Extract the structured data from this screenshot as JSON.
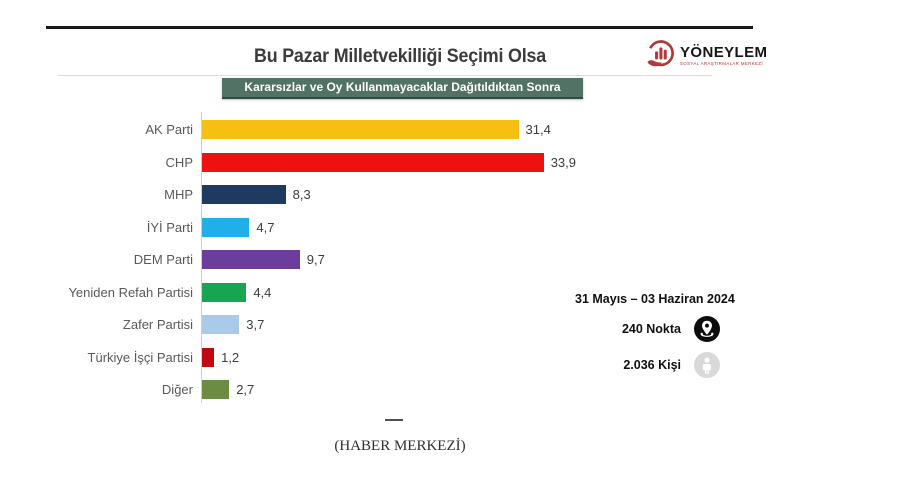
{
  "header": {
    "title": "Bu Pazar Milletvekilliği Seçimi Olsa",
    "subtitle_badge": "Kararsızlar ve Oy Kullanmayacaklar Dağıtıldıktan Sonra",
    "logo": {
      "name": "YÖNEYLEM",
      "subtitle": "SOSYAL ARAŞTIRMALAR MERKEZİ"
    }
  },
  "chart_data": {
    "type": "bar",
    "orientation": "horizontal",
    "title": "Bu Pazar Milletvekilliği Seçimi Olsa",
    "subtitle": "Kararsızlar ve Oy Kullanmayacaklar Dağıtıldıktan Sonra",
    "categories": [
      "AK Parti",
      "CHP",
      "MHP",
      "İYİ Parti",
      "DEM Parti",
      "Yeniden Refah Partisi",
      "Zafer Partisi",
      "Türkiye İşçi Partisi",
      "Diğer"
    ],
    "values": [
      31.4,
      33.9,
      8.3,
      4.7,
      9.7,
      4.4,
      3.7,
      1.2,
      2.7
    ],
    "value_labels": [
      "31,4",
      "33,9",
      "8,3",
      "4,7",
      "9,7",
      "4,4",
      "3,7",
      "1,2",
      "2,7"
    ],
    "bar_colors": [
      "#F6C013",
      "#ED1111",
      "#1F3A61",
      "#1FB0E8",
      "#6B3E9B",
      "#16A551",
      "#A9CAEB",
      "#C00812",
      "#6C8C42"
    ],
    "xlim": [
      0,
      35
    ],
    "grid": false,
    "legend": "none",
    "value_label_position": "end"
  },
  "survey_info": {
    "date_range": "31 Mayıs – 03 Haziran 2024",
    "points_label": "240 Nokta",
    "respondents_label": "2.036 Kişi"
  },
  "footer": {
    "credit": "(HABER MERKEZİ)"
  },
  "colors": {
    "badge_bg": "#527265",
    "top_rule": "#191919",
    "axis_line": "#cfcfcf",
    "logo_red": "#b03a3a",
    "location_icon_bg": "#0d0d0d",
    "person_icon_bg": "#d9d9d9"
  }
}
